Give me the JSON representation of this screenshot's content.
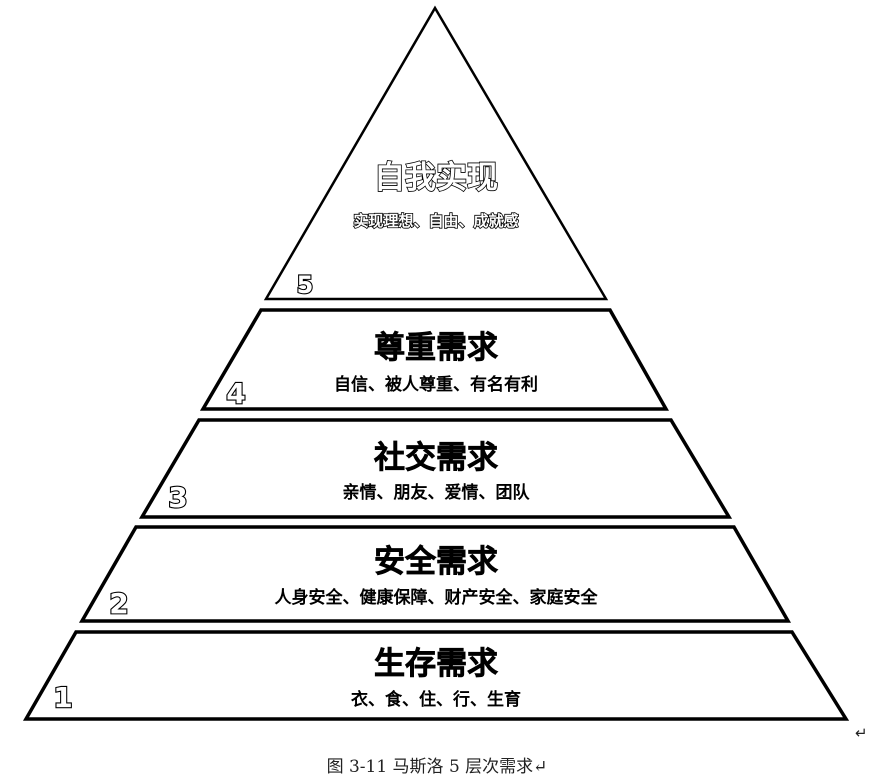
{
  "levels": [
    {
      "number": "5",
      "title": "自我实现",
      "description": "实现理想、自由、成就感"
    },
    {
      "number": "4",
      "title": "尊重需求",
      "description": "自信、被人尊重、有名有利"
    },
    {
      "number": "3",
      "title": "社交需求",
      "description": "亲情、朋友、爱情、团队"
    },
    {
      "number": "2",
      "title": "安全需求",
      "description": "人身安全、健康保障、财产安全、家庭安全"
    },
    {
      "number": "1",
      "title": "生存需求",
      "description": "衣、食、住、行、生育"
    }
  ],
  "caption": "图 3-11 马斯洛 5 层次需求↵",
  "return_mark": "↵",
  "colors": {
    "ink": "#000000",
    "fill": "#ffffff"
  }
}
